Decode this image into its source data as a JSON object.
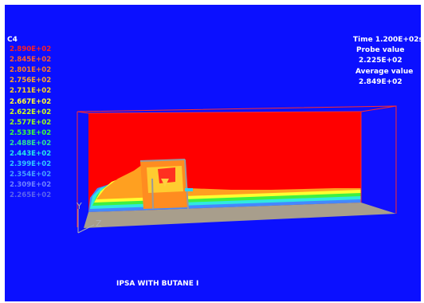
{
  "legend": {
    "variable": "C4",
    "entries": [
      {
        "label": "2.890E+02",
        "color": "#ff2020"
      },
      {
        "label": "2.845E+02",
        "color": "#ff5a2a"
      },
      {
        "label": "2.801E+02",
        "color": "#ff7a20"
      },
      {
        "label": "2.756E+02",
        "color": "#ffa428"
      },
      {
        "label": "2.711E+02",
        "color": "#ffd41e"
      },
      {
        "label": "2.667E+02",
        "color": "#ffff32"
      },
      {
        "label": "2.622E+02",
        "color": "#ccff1e"
      },
      {
        "label": "2.577E+02",
        "color": "#96ff1e"
      },
      {
        "label": "2.533E+02",
        "color": "#3cff3c"
      },
      {
        "label": "2.488E+02",
        "color": "#2ee696"
      },
      {
        "label": "2.443E+02",
        "color": "#28e6e6"
      },
      {
        "label": "2.399E+02",
        "color": "#32c8ff"
      },
      {
        "label": "2.354E+02",
        "color": "#46a0ff"
      },
      {
        "label": "2.309E+02",
        "color": "#6e82ff"
      },
      {
        "label": "2.265E+02",
        "color": "#5a64ee"
      }
    ]
  },
  "info": {
    "time": "Time  1.200E+02s",
    "probe_label": "Probe value",
    "probe_value": "2.225E+02",
    "avg_label": "Average value",
    "avg_value": "2.849E+02"
  },
  "caption": "IPSA WITH BUTANE I",
  "axes": {
    "y": "Y",
    "z": "Z"
  },
  "colors": {
    "background": "#0b10ff",
    "frame": "#ff2a2a",
    "floor": "#a89e8c",
    "field": "#ff0000"
  }
}
